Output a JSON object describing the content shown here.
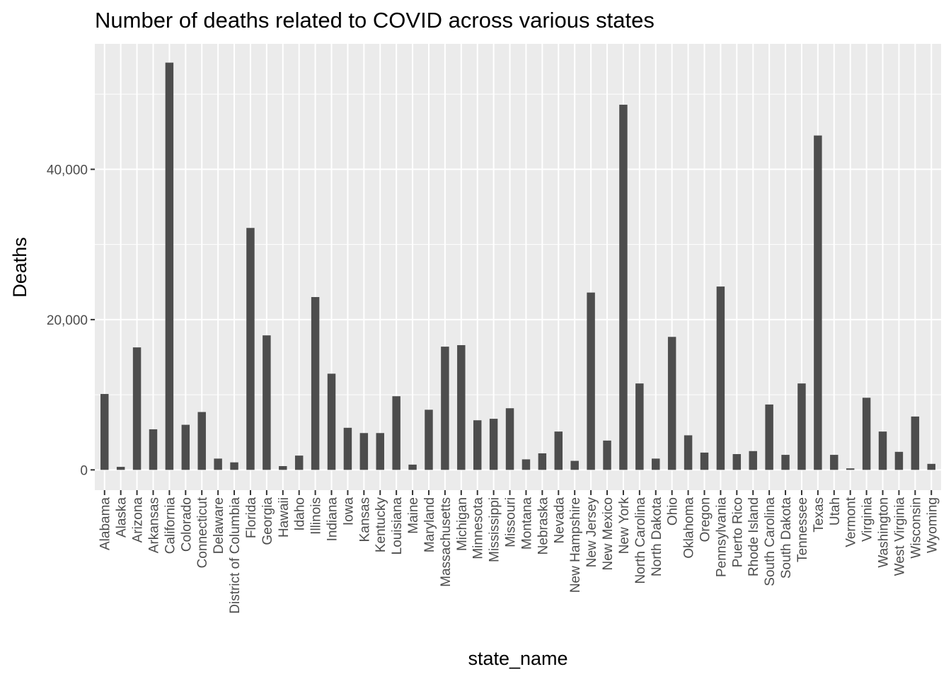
{
  "chart_data": {
    "type": "bar",
    "title": "Number of deaths related to COVID across various states",
    "xlabel": "state_name",
    "ylabel": "Deaths",
    "ylim": [
      -2700,
      56700
    ],
    "yticks": [
      0,
      20000,
      40000
    ],
    "ytick_labels": [
      "0",
      "20,000",
      "40,000"
    ],
    "grid": true,
    "legend": "none",
    "colors": {
      "panel": "#ebebeb",
      "grid_major": "#ffffff",
      "bar": "#4d4d4d",
      "tick_text": "#4d4d4d",
      "tick_mark": "#333333"
    },
    "categories": [
      "Alabama",
      "Alaska",
      "Arizona",
      "Arkansas",
      "California",
      "Colorado",
      "Connecticut",
      "Delaware",
      "District of Columbia",
      "Florida",
      "Georgia",
      "Hawaii",
      "Idaho",
      "Illinois",
      "Indiana",
      "Iowa",
      "Kansas",
      "Kentucky",
      "Louisiana",
      "Maine",
      "Maryland",
      "Massachusetts",
      "Michigan",
      "Minnesota",
      "Mississippi",
      "Missouri",
      "Montana",
      "Nebraska",
      "Nevada",
      "New Hampshire",
      "New Jersey",
      "New Mexico",
      "New York",
      "North Carolina",
      "North Dakota",
      "Ohio",
      "Oklahoma",
      "Oregon",
      "Pennsylvania",
      "Puerto Rico",
      "Rhode Island",
      "South Carolina",
      "South Dakota",
      "Tennessee",
      "Texas",
      "Utah",
      "Vermont",
      "Virginia",
      "Washington",
      "West Virginia",
      "Wisconsin",
      "Wyoming"
    ],
    "values": [
      10100,
      400,
      16300,
      5400,
      54200,
      6000,
      7700,
      1500,
      1000,
      32200,
      17900,
      500,
      1900,
      23000,
      12800,
      5600,
      4900,
      4900,
      9800,
      700,
      8000,
      16400,
      16600,
      6600,
      6800,
      8200,
      1400,
      2200,
      5100,
      1200,
      23600,
      3900,
      48600,
      11500,
      1500,
      17700,
      4600,
      2300,
      24400,
      2100,
      2500,
      8700,
      2000,
      11500,
      44500,
      2000,
      200,
      9600,
      5100,
      2400,
      7100,
      800
    ]
  }
}
